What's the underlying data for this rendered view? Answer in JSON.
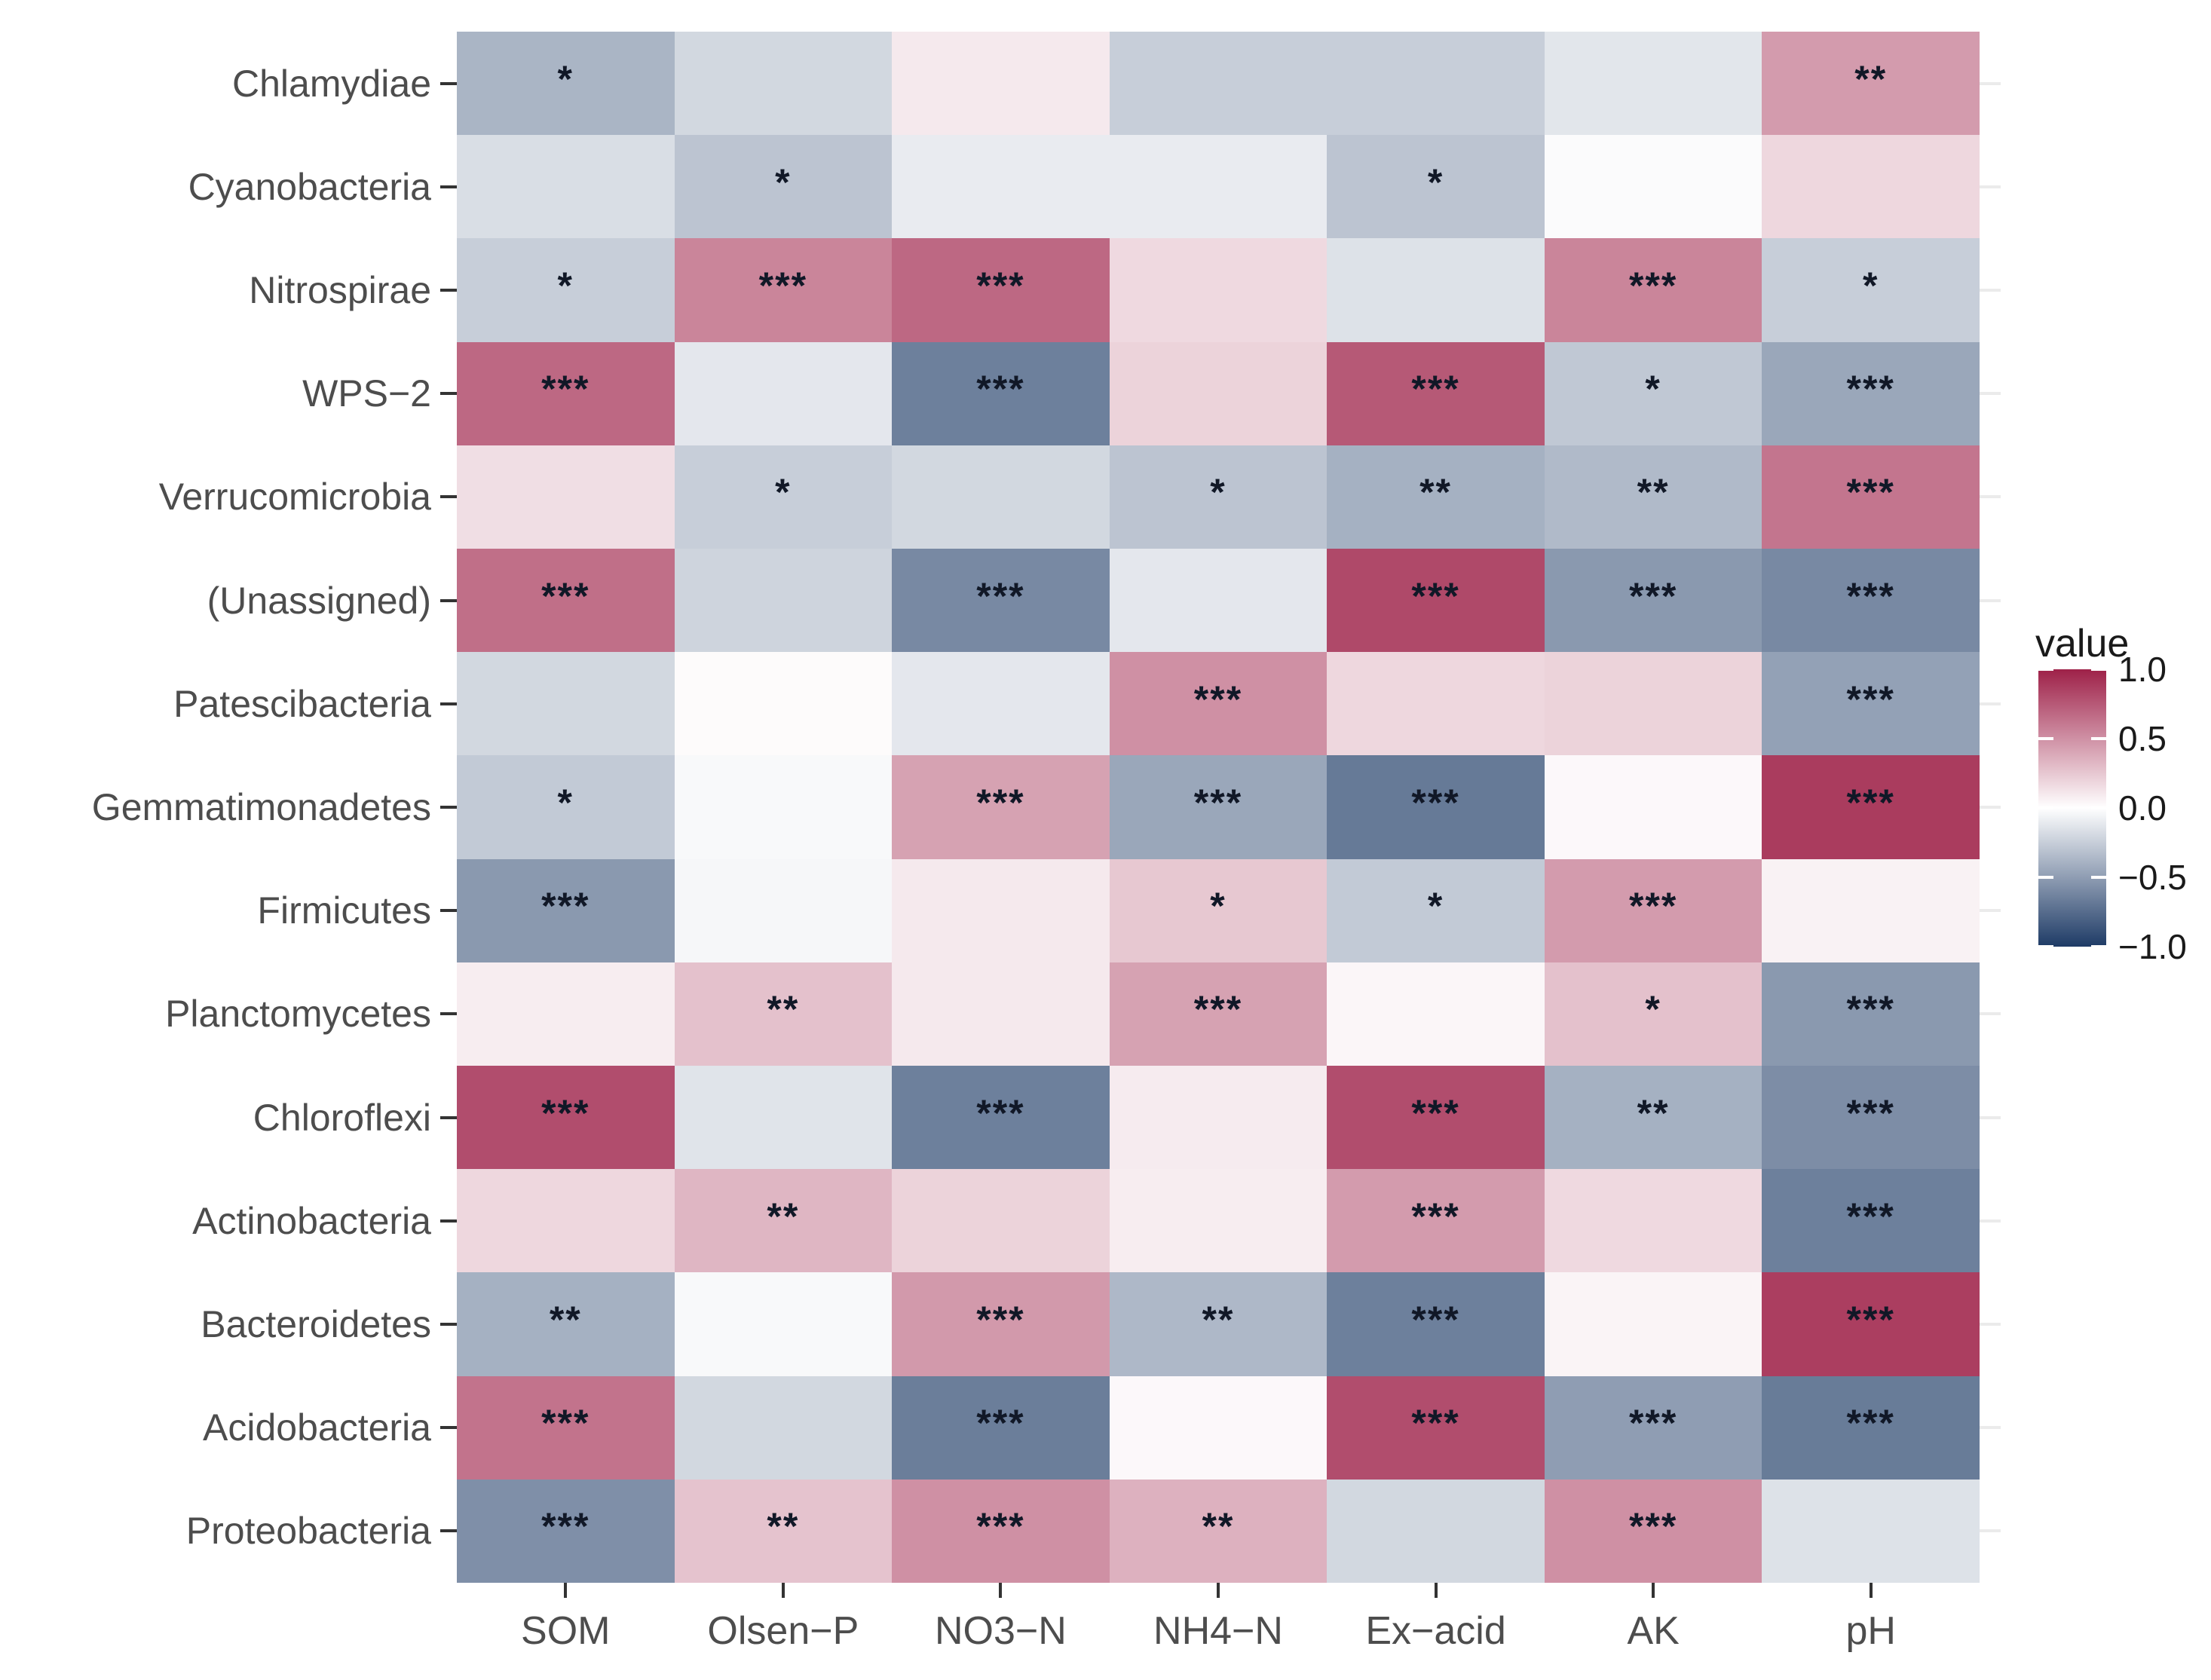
{
  "figure": {
    "background": "#ffffff"
  },
  "chart_data": {
    "type": "heatmap",
    "title": "",
    "legend_title": "value",
    "legend_ticks": [
      "1.0",
      "0.5",
      "0.0",
      "−0.5",
      "−1.0"
    ],
    "legend_tick_values": [
      1.0,
      0.5,
      0.0,
      -0.5,
      -1.0
    ],
    "value_range": [
      -1.0,
      1.0
    ],
    "colors": {
      "high": "#9e2148",
      "mid": "#ffffff",
      "low": "#1e3b66",
      "axis_text": "#4d4d4d",
      "legend_text": "#1a1a1a",
      "star": "#111827",
      "axis_tick": "#333333",
      "right_tick": "#ebebeb"
    },
    "x_categories": [
      "SOM",
      "Olsen−P",
      "NO3−N",
      "NH4−N",
      "Ex−acid",
      "AK",
      "pH"
    ],
    "y_categories": [
      "Chlamydiae",
      "Cyanobacteria",
      "Nitrospirae",
      "WPS−2",
      "Verrucomicrobia",
      "(Unassigned)",
      "Patescibacteria",
      "Gemmatimonadetes",
      "Firmicutes",
      "Planctomycetes",
      "Chloroflexi",
      "Actinobacteria",
      "Bacteroidetes",
      "Acidobacteria",
      "Proteobacteria"
    ],
    "significance_symbols": [
      "*",
      "**",
      "***"
    ],
    "rows": [
      {
        "name": "Chlamydiae",
        "values": [
          -0.38,
          -0.2,
          0.1,
          -0.25,
          -0.25,
          -0.13,
          0.45
        ],
        "stars": [
          "*",
          "",
          "",
          "",
          "",
          "",
          "**"
        ]
      },
      {
        "name": "Cyanobacteria",
        "values": [
          -0.17,
          -0.3,
          -0.1,
          -0.1,
          -0.3,
          -0.02,
          0.18
        ],
        "stars": [
          "",
          "*",
          "",
          "",
          "*",
          "",
          ""
        ]
      },
      {
        "name": "Nitrospirae",
        "values": [
          -0.25,
          0.55,
          0.68,
          0.17,
          -0.15,
          0.55,
          -0.25
        ],
        "stars": [
          "*",
          "***",
          "***",
          "",
          "",
          "***",
          "*"
        ]
      },
      {
        "name": "WPS−2",
        "values": [
          0.68,
          -0.12,
          -0.65,
          0.2,
          0.75,
          -0.28,
          -0.45
        ],
        "stars": [
          "***",
          "",
          "***",
          "",
          "***",
          "*",
          "***"
        ]
      },
      {
        "name": "Verrucomicrobia",
        "values": [
          0.15,
          -0.25,
          -0.2,
          -0.3,
          -0.4,
          -0.35,
          0.62
        ],
        "stars": [
          "",
          "*",
          "",
          "*",
          "**",
          "**",
          "***"
        ]
      },
      {
        "name": "(Unassigned)",
        "values": [
          0.65,
          -0.22,
          -0.6,
          -0.12,
          0.82,
          -0.52,
          -0.6
        ],
        "stars": [
          "***",
          "",
          "***",
          "",
          "***",
          "***",
          "***"
        ]
      },
      {
        "name": "Patescibacteria",
        "values": [
          -0.2,
          0.02,
          -0.12,
          0.5,
          0.18,
          0.2,
          -0.48
        ],
        "stars": [
          "",
          "",
          "",
          "***",
          "",
          "",
          "***"
        ]
      },
      {
        "name": "Gemmatimonadetes",
        "values": [
          -0.27,
          -0.03,
          0.42,
          -0.45,
          -0.68,
          0.03,
          0.88
        ],
        "stars": [
          "*",
          "",
          "***",
          "***",
          "***",
          "",
          "***"
        ]
      },
      {
        "name": "Firmicutes",
        "values": [
          -0.52,
          -0.04,
          0.1,
          0.25,
          -0.27,
          0.45,
          0.06
        ],
        "stars": [
          "***",
          "",
          "",
          "*",
          "*",
          "***",
          ""
        ]
      },
      {
        "name": "Planctomycetes",
        "values": [
          0.08,
          0.28,
          0.1,
          0.42,
          0.04,
          0.28,
          -0.52
        ],
        "stars": [
          "",
          "**",
          "",
          "***",
          "",
          "*",
          "***"
        ]
      },
      {
        "name": "Chloroflexi",
        "values": [
          0.8,
          -0.14,
          -0.65,
          0.09,
          0.8,
          -0.4,
          -0.58
        ],
        "stars": [
          "***",
          "",
          "***",
          "",
          "***",
          "**",
          "***"
        ]
      },
      {
        "name": "Actinobacteria",
        "values": [
          0.18,
          0.33,
          0.2,
          0.08,
          0.45,
          0.17,
          -0.65
        ],
        "stars": [
          "",
          "**",
          "",
          "",
          "***",
          "",
          "***"
        ]
      },
      {
        "name": "Bacteroidetes",
        "values": [
          -0.4,
          -0.03,
          0.46,
          -0.36,
          -0.65,
          0.05,
          0.87
        ],
        "stars": [
          "**",
          "",
          "***",
          "**",
          "***",
          "",
          "***"
        ]
      },
      {
        "name": "Acidobacteria",
        "values": [
          0.63,
          -0.2,
          -0.66,
          0.03,
          0.8,
          -0.5,
          -0.67
        ],
        "stars": [
          "***",
          "",
          "***",
          "",
          "***",
          "***",
          "***"
        ]
      },
      {
        "name": "Proteobacteria",
        "values": [
          -0.57,
          0.27,
          0.5,
          0.35,
          -0.2,
          0.5,
          -0.15
        ],
        "stars": [
          "***",
          "**",
          "***",
          "**",
          "",
          "***",
          ""
        ]
      }
    ]
  }
}
